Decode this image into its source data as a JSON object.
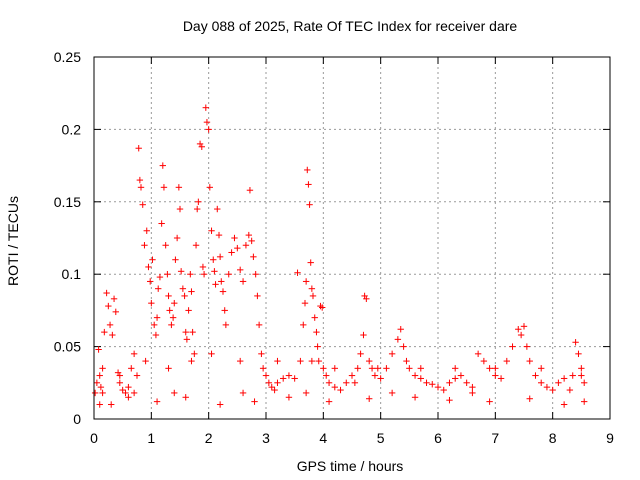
{
  "chart_data": {
    "type": "scatter",
    "title": "Day 088 of 2025, Rate Of TEC Index for receiver dare",
    "xlabel": "GPS time / hours",
    "ylabel": "ROTI / TECUs",
    "xlim": [
      0,
      9
    ],
    "ylim": [
      0,
      0.25
    ],
    "xticks": [
      "0",
      "1",
      "2",
      "3",
      "4",
      "5",
      "6",
      "7",
      "8",
      "9"
    ],
    "yticks": [
      "0",
      "0.05",
      "0.1",
      "0.15",
      "0.2",
      "0.25"
    ],
    "grid": true,
    "marker": "+",
    "color": "#ff0000",
    "series": [
      {
        "values": [
          [
            0.02,
            0.018
          ],
          [
            0.05,
            0.025
          ],
          [
            0.08,
            0.048
          ],
          [
            0.1,
            0.03
          ],
          [
            0.12,
            0.022
          ],
          [
            0.15,
            0.018
          ],
          [
            0.18,
            0.06
          ],
          [
            0.22,
            0.087
          ],
          [
            0.25,
            0.078
          ],
          [
            0.28,
            0.065
          ],
          [
            0.32,
            0.058
          ],
          [
            0.35,
            0.083
          ],
          [
            0.38,
            0.074
          ],
          [
            0.42,
            0.032
          ],
          [
            0.45,
            0.025
          ],
          [
            0.5,
            0.02
          ],
          [
            0.55,
            0.018
          ],
          [
            0.6,
            0.022
          ],
          [
            0.65,
            0.035
          ],
          [
            0.7,
            0.045
          ],
          [
            0.75,
            0.03
          ],
          [
            0.78,
            0.187
          ],
          [
            0.8,
            0.165
          ],
          [
            0.82,
            0.16
          ],
          [
            0.85,
            0.148
          ],
          [
            0.88,
            0.12
          ],
          [
            0.92,
            0.13
          ],
          [
            0.95,
            0.105
          ],
          [
            0.98,
            0.095
          ],
          [
            1.0,
            0.08
          ],
          [
            1.02,
            0.11
          ],
          [
            1.05,
            0.065
          ],
          [
            1.08,
            0.058
          ],
          [
            1.1,
            0.07
          ],
          [
            1.12,
            0.09
          ],
          [
            1.15,
            0.098
          ],
          [
            1.18,
            0.135
          ],
          [
            1.2,
            0.175
          ],
          [
            1.22,
            0.16
          ],
          [
            1.25,
            0.12
          ],
          [
            1.28,
            0.1
          ],
          [
            1.3,
            0.085
          ],
          [
            1.32,
            0.075
          ],
          [
            1.35,
            0.065
          ],
          [
            1.38,
            0.07
          ],
          [
            1.4,
            0.08
          ],
          [
            1.42,
            0.11
          ],
          [
            1.45,
            0.125
          ],
          [
            1.48,
            0.16
          ],
          [
            1.5,
            0.145
          ],
          [
            1.52,
            0.102
          ],
          [
            1.55,
            0.09
          ],
          [
            1.58,
            0.085
          ],
          [
            1.6,
            0.06
          ],
          [
            1.62,
            0.055
          ],
          [
            1.65,
            0.075
          ],
          [
            1.68,
            0.1
          ],
          [
            1.7,
            0.088
          ],
          [
            1.72,
            0.06
          ],
          [
            1.75,
            0.045
          ],
          [
            1.78,
            0.12
          ],
          [
            1.8,
            0.145
          ],
          [
            1.82,
            0.15
          ],
          [
            1.85,
            0.19
          ],
          [
            1.88,
            0.188
          ],
          [
            1.9,
            0.105
          ],
          [
            1.92,
            0.1
          ],
          [
            1.95,
            0.215
          ],
          [
            1.97,
            0.205
          ],
          [
            2.0,
            0.2
          ],
          [
            2.02,
            0.16
          ],
          [
            2.05,
            0.13
          ],
          [
            2.08,
            0.11
          ],
          [
            2.1,
            0.102
          ],
          [
            2.12,
            0.093
          ],
          [
            2.15,
            0.145
          ],
          [
            2.18,
            0.127
          ],
          [
            2.2,
            0.112
          ],
          [
            2.22,
            0.095
          ],
          [
            2.25,
            0.088
          ],
          [
            2.28,
            0.075
          ],
          [
            2.3,
            0.065
          ],
          [
            2.35,
            0.1
          ],
          [
            2.4,
            0.115
          ],
          [
            2.45,
            0.125
          ],
          [
            2.5,
            0.118
          ],
          [
            2.55,
            0.103
          ],
          [
            2.6,
            0.095
          ],
          [
            2.65,
            0.12
          ],
          [
            2.7,
            0.127
          ],
          [
            2.72,
            0.158
          ],
          [
            2.75,
            0.123
          ],
          [
            2.78,
            0.112
          ],
          [
            2.82,
            0.1
          ],
          [
            2.85,
            0.085
          ],
          [
            2.88,
            0.065
          ],
          [
            2.92,
            0.045
          ],
          [
            2.95,
            0.035
          ],
          [
            3.0,
            0.03
          ],
          [
            3.05,
            0.025
          ],
          [
            3.1,
            0.022
          ],
          [
            3.15,
            0.02
          ],
          [
            3.2,
            0.025
          ],
          [
            3.3,
            0.028
          ],
          [
            3.4,
            0.03
          ],
          [
            3.5,
            0.028
          ],
          [
            3.55,
            0.101
          ],
          [
            3.6,
            0.04
          ],
          [
            3.65,
            0.065
          ],
          [
            3.68,
            0.08
          ],
          [
            3.7,
            0.095
          ],
          [
            3.72,
            0.172
          ],
          [
            3.74,
            0.162
          ],
          [
            3.76,
            0.148
          ],
          [
            3.78,
            0.108
          ],
          [
            3.8,
            0.09
          ],
          [
            3.82,
            0.085
          ],
          [
            3.85,
            0.07
          ],
          [
            3.88,
            0.06
          ],
          [
            3.9,
            0.05
          ],
          [
            3.92,
            0.04
          ],
          [
            3.95,
            0.078
          ],
          [
            3.98,
            0.077
          ],
          [
            4.0,
            0.035
          ],
          [
            4.05,
            0.03
          ],
          [
            4.1,
            0.025
          ],
          [
            4.2,
            0.022
          ],
          [
            4.3,
            0.02
          ],
          [
            4.4,
            0.025
          ],
          [
            4.5,
            0.03
          ],
          [
            4.55,
            0.025
          ],
          [
            4.6,
            0.035
          ],
          [
            4.65,
            0.045
          ],
          [
            4.7,
            0.058
          ],
          [
            4.72,
            0.085
          ],
          [
            4.75,
            0.083
          ],
          [
            4.8,
            0.04
          ],
          [
            4.85,
            0.035
          ],
          [
            4.9,
            0.03
          ],
          [
            5.0,
            0.028
          ],
          [
            5.1,
            0.035
          ],
          [
            5.2,
            0.045
          ],
          [
            5.3,
            0.055
          ],
          [
            5.35,
            0.062
          ],
          [
            5.4,
            0.05
          ],
          [
            5.45,
            0.04
          ],
          [
            5.5,
            0.035
          ],
          [
            5.6,
            0.03
          ],
          [
            5.7,
            0.028
          ],
          [
            5.8,
            0.025
          ],
          [
            5.9,
            0.024
          ],
          [
            6.0,
            0.022
          ],
          [
            6.1,
            0.02
          ],
          [
            6.2,
            0.025
          ],
          [
            6.3,
            0.028
          ],
          [
            6.4,
            0.03
          ],
          [
            6.5,
            0.025
          ],
          [
            6.6,
            0.022
          ],
          [
            6.7,
            0.045
          ],
          [
            6.8,
            0.04
          ],
          [
            6.9,
            0.035
          ],
          [
            7.0,
            0.03
          ],
          [
            7.1,
            0.028
          ],
          [
            7.2,
            0.04
          ],
          [
            7.3,
            0.05
          ],
          [
            7.4,
            0.062
          ],
          [
            7.45,
            0.058
          ],
          [
            7.5,
            0.064
          ],
          [
            7.55,
            0.05
          ],
          [
            7.6,
            0.04
          ],
          [
            7.7,
            0.03
          ],
          [
            7.8,
            0.025
          ],
          [
            7.9,
            0.022
          ],
          [
            8.0,
            0.02
          ],
          [
            8.1,
            0.025
          ],
          [
            8.2,
            0.028
          ],
          [
            8.3,
            0.02
          ],
          [
            8.35,
            0.03
          ],
          [
            8.4,
            0.053
          ],
          [
            8.45,
            0.045
          ],
          [
            8.5,
            0.03
          ],
          [
            8.55,
            0.025
          ],
          [
            0.3,
            0.01
          ],
          [
            0.6,
            0.015
          ],
          [
            1.1,
            0.012
          ],
          [
            1.6,
            0.015
          ],
          [
            2.2,
            0.01
          ],
          [
            2.8,
            0.012
          ],
          [
            3.4,
            0.015
          ],
          [
            4.1,
            0.012
          ],
          [
            4.8,
            0.014
          ],
          [
            5.6,
            0.015
          ],
          [
            6.2,
            0.013
          ],
          [
            6.9,
            0.012
          ],
          [
            7.6,
            0.014
          ],
          [
            8.2,
            0.01
          ],
          [
            8.55,
            0.012
          ],
          [
            0.15,
            0.035
          ],
          [
            0.45,
            0.03
          ],
          [
            0.9,
            0.04
          ],
          [
            1.3,
            0.035
          ],
          [
            1.7,
            0.04
          ],
          [
            2.05,
            0.045
          ],
          [
            2.55,
            0.04
          ],
          [
            3.2,
            0.04
          ],
          [
            3.8,
            0.04
          ],
          [
            4.2,
            0.035
          ],
          [
            4.95,
            0.035
          ],
          [
            5.7,
            0.035
          ],
          [
            6.3,
            0.035
          ],
          [
            7.0,
            0.035
          ],
          [
            7.8,
            0.035
          ],
          [
            8.5,
            0.035
          ],
          [
            0.1,
            0.01
          ],
          [
            0.7,
            0.018
          ],
          [
            1.4,
            0.018
          ],
          [
            2.6,
            0.018
          ],
          [
            3.7,
            0.018
          ],
          [
            5.2,
            0.018
          ],
          [
            6.6,
            0.018
          ]
        ]
      }
    ]
  }
}
